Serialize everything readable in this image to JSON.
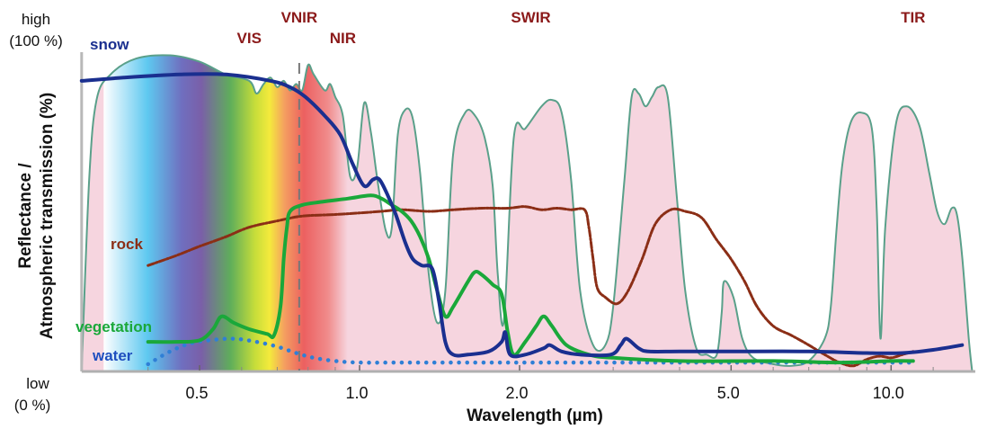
{
  "chart_data": {
    "type": "line",
    "title": "",
    "xlabel": "Wavelength (µm)",
    "ylabel_line1": "Reflectance /",
    "ylabel_line2": "Atmospheric transmission (%)",
    "x_scale": "log",
    "xlim": [
      0.3,
      14.4
    ],
    "ylim": [
      0,
      100
    ],
    "x_ticks": [
      {
        "value": 0.5,
        "label": "0.5"
      },
      {
        "value": 1.0,
        "label": "1.0"
      },
      {
        "value": 2.0,
        "label": "2.0"
      },
      {
        "value": 5.0,
        "label": "5.0"
      },
      {
        "value": 10.0,
        "label": "10.0"
      }
    ],
    "minor_ticks": [
      0.4,
      0.6,
      0.7,
      0.8,
      0.9,
      3.0,
      4.0,
      6.0,
      7.0,
      8.0,
      9.0,
      12.0
    ],
    "y_labels": {
      "high": {
        "line1": "high",
        "line2": "(100 %)",
        "value": 100
      },
      "low": {
        "line1": "low",
        "line2": "(0 %)",
        "value": 0
      }
    },
    "band_labels": [
      {
        "label": "VNIR",
        "x": 0.77,
        "row": 1
      },
      {
        "label": "VIS",
        "x": 0.62,
        "row": 2
      },
      {
        "label": "NIR",
        "x": 0.93,
        "row": 2
      },
      {
        "label": "SWIR",
        "x": 2.1,
        "row": 1
      },
      {
        "label": "TIR",
        "x": 11.0,
        "row": 1
      }
    ],
    "vis_nir_boundary": 0.77,
    "colors": {
      "snow": "#1a2f8f",
      "vegetation": "#1aa83a",
      "rock": "#8b2e16",
      "water": "#2f7fd6",
      "atmosphere_fill": "#f6d5df",
      "atmosphere_line": "#5aa08a",
      "band_label": "#8b1a1a"
    },
    "series": [
      {
        "name": "snow",
        "label": "snow",
        "style": "solid",
        "points": [
          [
            0.3,
            91
          ],
          [
            0.36,
            92
          ],
          [
            0.46,
            93
          ],
          [
            0.56,
            93
          ],
          [
            0.68,
            91
          ],
          [
            0.74,
            89
          ],
          [
            0.79,
            86
          ],
          [
            0.86,
            80
          ],
          [
            0.92,
            74
          ],
          [
            0.97,
            65
          ],
          [
            1.02,
            58
          ],
          [
            1.06,
            60
          ],
          [
            1.09,
            60
          ],
          [
            1.13,
            55
          ],
          [
            1.17,
            49
          ],
          [
            1.22,
            40
          ],
          [
            1.26,
            35
          ],
          [
            1.31,
            33
          ],
          [
            1.37,
            32
          ],
          [
            1.41,
            22
          ],
          [
            1.45,
            9
          ],
          [
            1.5,
            5
          ],
          [
            1.6,
            5
          ],
          [
            1.75,
            6
          ],
          [
            1.85,
            9
          ],
          [
            1.88,
            12
          ],
          [
            1.92,
            5
          ],
          [
            2.05,
            5
          ],
          [
            2.22,
            7
          ],
          [
            2.28,
            8
          ],
          [
            2.4,
            6
          ],
          [
            2.6,
            5
          ],
          [
            2.97,
            5
          ],
          [
            3.1,
            8
          ],
          [
            3.18,
            10
          ],
          [
            3.35,
            7
          ],
          [
            3.5,
            6
          ],
          [
            4.0,
            6
          ],
          [
            5.0,
            6
          ],
          [
            7.0,
            6
          ],
          [
            9.0,
            5.5
          ],
          [
            10.5,
            5.5
          ],
          [
            12.0,
            6.5
          ],
          [
            13.6,
            8
          ]
        ]
      },
      {
        "name": "vegetation",
        "label": "vegetation",
        "style": "solid",
        "points": [
          [
            0.4,
            9
          ],
          [
            0.45,
            9
          ],
          [
            0.5,
            9.5
          ],
          [
            0.53,
            13
          ],
          [
            0.55,
            17
          ],
          [
            0.58,
            15
          ],
          [
            0.62,
            13
          ],
          [
            0.67,
            11.5
          ],
          [
            0.69,
            11
          ],
          [
            0.71,
            20
          ],
          [
            0.72,
            35
          ],
          [
            0.73,
            45
          ],
          [
            0.74,
            50
          ],
          [
            0.78,
            52
          ],
          [
            0.85,
            53
          ],
          [
            0.95,
            54
          ],
          [
            1.05,
            55
          ],
          [
            1.1,
            54
          ],
          [
            1.15,
            52
          ],
          [
            1.2,
            50
          ],
          [
            1.25,
            47
          ],
          [
            1.3,
            42
          ],
          [
            1.35,
            35
          ],
          [
            1.4,
            25
          ],
          [
            1.45,
            17
          ],
          [
            1.5,
            20
          ],
          [
            1.6,
            28
          ],
          [
            1.65,
            31
          ],
          [
            1.7,
            30
          ],
          [
            1.78,
            27
          ],
          [
            1.85,
            24
          ],
          [
            1.9,
            12
          ],
          [
            1.95,
            5
          ],
          [
            2.05,
            9
          ],
          [
            2.15,
            14
          ],
          [
            2.22,
            17
          ],
          [
            2.3,
            14
          ],
          [
            2.45,
            8
          ],
          [
            2.7,
            5
          ],
          [
            3.0,
            4
          ],
          [
            4.0,
            3
          ],
          [
            6.0,
            3
          ],
          [
            8.0,
            2.5
          ],
          [
            10.0,
            3
          ],
          [
            11.0,
            3
          ]
        ]
      },
      {
        "name": "rock",
        "label": "rock",
        "style": "dash-dot",
        "points": [
          [
            0.4,
            33
          ],
          [
            0.45,
            36
          ],
          [
            0.5,
            39
          ],
          [
            0.56,
            42
          ],
          [
            0.62,
            45
          ],
          [
            0.7,
            47
          ],
          [
            0.78,
            48.5
          ],
          [
            0.9,
            49
          ],
          [
            1.0,
            49.5
          ],
          [
            1.1,
            50
          ],
          [
            1.2,
            50.5
          ],
          [
            1.35,
            50
          ],
          [
            1.5,
            50.5
          ],
          [
            1.7,
            51
          ],
          [
            1.9,
            51
          ],
          [
            2.05,
            51.5
          ],
          [
            2.2,
            50.5
          ],
          [
            2.35,
            51
          ],
          [
            2.5,
            50.5
          ],
          [
            2.65,
            50.5
          ],
          [
            2.7,
            45
          ],
          [
            2.75,
            35
          ],
          [
            2.8,
            26
          ],
          [
            2.9,
            23
          ],
          [
            3.05,
            21
          ],
          [
            3.2,
            25
          ],
          [
            3.4,
            35
          ],
          [
            3.6,
            46
          ],
          [
            3.85,
            50.5
          ],
          [
            4.1,
            50
          ],
          [
            4.4,
            48
          ],
          [
            4.7,
            41
          ],
          [
            5.0,
            35
          ],
          [
            5.3,
            28
          ],
          [
            5.6,
            20
          ],
          [
            6.0,
            14
          ],
          [
            6.5,
            11
          ],
          [
            7.0,
            8
          ],
          [
            7.5,
            5
          ],
          [
            8.0,
            2.5
          ],
          [
            8.5,
            1.5
          ],
          [
            9.0,
            3.5
          ],
          [
            9.5,
            4.5
          ],
          [
            10.0,
            4
          ],
          [
            10.5,
            5
          ],
          [
            11.0,
            6
          ]
        ]
      },
      {
        "name": "water",
        "label": "water",
        "style": "dotted",
        "points": [
          [
            0.4,
            2
          ],
          [
            0.44,
            6
          ],
          [
            0.48,
            8.5
          ],
          [
            0.52,
            9.5
          ],
          [
            0.58,
            10
          ],
          [
            0.64,
            9
          ],
          [
            0.7,
            7.5
          ],
          [
            0.76,
            5.5
          ],
          [
            0.82,
            4
          ],
          [
            0.9,
            3
          ],
          [
            1.0,
            2.5
          ],
          [
            1.2,
            2.5
          ],
          [
            1.5,
            2.5
          ],
          [
            2.0,
            2.5
          ],
          [
            3.0,
            2.5
          ],
          [
            5.0,
            2.5
          ],
          [
            8.0,
            2.5
          ],
          [
            11.0,
            2.5
          ]
        ]
      },
      {
        "name": "atmospheric_transmission",
        "label": "",
        "style": "filled",
        "points": [
          [
            0.3,
            0
          ],
          [
            0.31,
            60
          ],
          [
            0.32,
            85
          ],
          [
            0.34,
            93
          ],
          [
            0.38,
            98
          ],
          [
            0.44,
            99
          ],
          [
            0.5,
            97
          ],
          [
            0.56,
            93
          ],
          [
            0.62,
            91
          ],
          [
            0.64,
            87
          ],
          [
            0.66,
            90
          ],
          [
            0.68,
            92
          ],
          [
            0.7,
            89
          ],
          [
            0.72,
            91
          ],
          [
            0.74,
            88
          ],
          [
            0.76,
            90
          ],
          [
            0.78,
            88
          ],
          [
            0.8,
            96
          ],
          [
            0.82,
            93
          ],
          [
            0.86,
            88
          ],
          [
            0.88,
            90
          ],
          [
            0.9,
            86
          ],
          [
            0.93,
            80
          ],
          [
            0.96,
            61
          ],
          [
            0.99,
            64
          ],
          [
            1.02,
            84
          ],
          [
            1.05,
            75
          ],
          [
            1.08,
            60
          ],
          [
            1.12,
            44
          ],
          [
            1.15,
            45
          ],
          [
            1.18,
            74
          ],
          [
            1.22,
            82
          ],
          [
            1.26,
            79
          ],
          [
            1.3,
            62
          ],
          [
            1.35,
            30
          ],
          [
            1.4,
            15
          ],
          [
            1.45,
            25
          ],
          [
            1.5,
            68
          ],
          [
            1.58,
            81
          ],
          [
            1.65,
            80
          ],
          [
            1.72,
            73
          ],
          [
            1.78,
            58
          ],
          [
            1.82,
            30
          ],
          [
            1.87,
            16
          ],
          [
            1.95,
            73
          ],
          [
            2.05,
            76
          ],
          [
            2.2,
            83
          ],
          [
            2.3,
            85
          ],
          [
            2.4,
            81
          ],
          [
            2.5,
            60
          ],
          [
            2.6,
            25
          ],
          [
            2.75,
            8
          ],
          [
            2.9,
            8
          ],
          [
            3.0,
            20
          ],
          [
            3.15,
            60
          ],
          [
            3.25,
            86
          ],
          [
            3.35,
            87
          ],
          [
            3.45,
            83
          ],
          [
            3.55,
            86
          ],
          [
            3.65,
            89
          ],
          [
            3.8,
            86
          ],
          [
            3.95,
            55
          ],
          [
            4.1,
            25
          ],
          [
            4.3,
            7
          ],
          [
            4.5,
            5
          ],
          [
            4.7,
            5
          ],
          [
            4.8,
            18
          ],
          [
            4.85,
            28
          ],
          [
            5.05,
            23
          ],
          [
            5.25,
            10
          ],
          [
            5.5,
            4
          ],
          [
            6.0,
            2
          ],
          [
            6.5,
            1.5
          ],
          [
            7.0,
            3
          ],
          [
            7.5,
            10
          ],
          [
            7.7,
            20
          ],
          [
            7.9,
            45
          ],
          [
            8.1,
            65
          ],
          [
            8.4,
            78
          ],
          [
            8.8,
            81
          ],
          [
            9.2,
            76
          ],
          [
            9.4,
            50
          ],
          [
            9.55,
            10
          ],
          [
            9.75,
            45
          ],
          [
            10.2,
            77
          ],
          [
            10.7,
            83
          ],
          [
            11.3,
            77
          ],
          [
            11.8,
            62
          ],
          [
            12.2,
            50
          ],
          [
            12.6,
            46
          ],
          [
            13.0,
            51
          ],
          [
            13.3,
            49
          ],
          [
            13.6,
            36
          ],
          [
            14.0,
            10
          ],
          [
            14.2,
            0
          ]
        ]
      }
    ],
    "series_labels": [
      {
        "text": "snow",
        "series": "snow"
      },
      {
        "text": "rock",
        "series": "rock"
      },
      {
        "text": "vegetation",
        "series": "vegetation"
      },
      {
        "text": "water",
        "series": "water"
      }
    ]
  }
}
